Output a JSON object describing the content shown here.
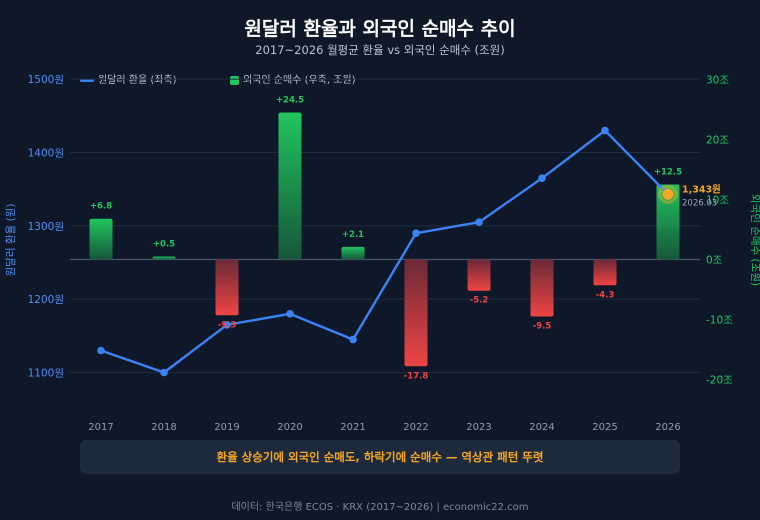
{
  "title": "원달러 환율과 외국인 순매수 추이",
  "subtitle": "2017~2026 월평균 환율 vs 외국인 순매수 (조원)",
  "legend": {
    "line_label": "원달러 환율 (좌축)",
    "bar_label": "외국인 순매수 (우축, 조원)"
  },
  "callout": "환율 상승기에 외국인 순매도, 하락기에 순매수 — 역상관 패턴 뚜렷",
  "source": "데이터: 한국은행 ECOS · KRX (2017~2026) | economic22.com",
  "colors": {
    "line": "#3b82f6",
    "positive_bar": "#22c55e",
    "negative_bar": "#ef4444",
    "highlight": "#f5a623"
  },
  "chart_data": {
    "type": "bar+line",
    "categories": [
      "2017",
      "2018",
      "2019",
      "2020",
      "2021",
      "2022",
      "2023",
      "2024",
      "2025",
      "2026"
    ],
    "series": [
      {
        "name": "원달러 환율 (좌축)",
        "type": "line",
        "axis": "left",
        "values": [
          1130,
          1100,
          1165,
          1180,
          1145,
          1290,
          1305,
          1365,
          1430,
          1343
        ]
      },
      {
        "name": "외국인 순매수 (우축, 조원)",
        "type": "bar",
        "axis": "right",
        "values": [
          6.8,
          0.5,
          -9.3,
          24.5,
          2.1,
          -17.8,
          -5.2,
          -9.5,
          -4.3,
          12.5
        ],
        "labels": [
          "+6.8",
          "+0.5",
          "-9.3",
          "+24.5",
          "+2.1",
          "-17.8",
          "-5.2",
          "-9.5",
          "-4.3",
          "+12.5"
        ]
      }
    ],
    "left_axis": {
      "label": "원달러 환율 (원)",
      "range": [
        1050,
        1550
      ],
      "ticks": [
        1100,
        1200,
        1300,
        1400,
        1500
      ],
      "tick_labels": [
        "1100원",
        "1200원",
        "1300원",
        "1400원",
        "1500원"
      ]
    },
    "right_axis": {
      "label": "외국인 순매수 (조원)",
      "range": [
        -25,
        35
      ],
      "ticks": [
        -20,
        -10,
        0,
        10,
        20,
        30
      ],
      "tick_labels": [
        "-20조",
        "-10조",
        "0조",
        "10조",
        "20조",
        "30조"
      ]
    },
    "highlight": {
      "category": "2026",
      "value": 1343,
      "value_label": "1,343원",
      "date_label": "2026.03"
    },
    "grid": true,
    "legend_position": "top-left"
  }
}
